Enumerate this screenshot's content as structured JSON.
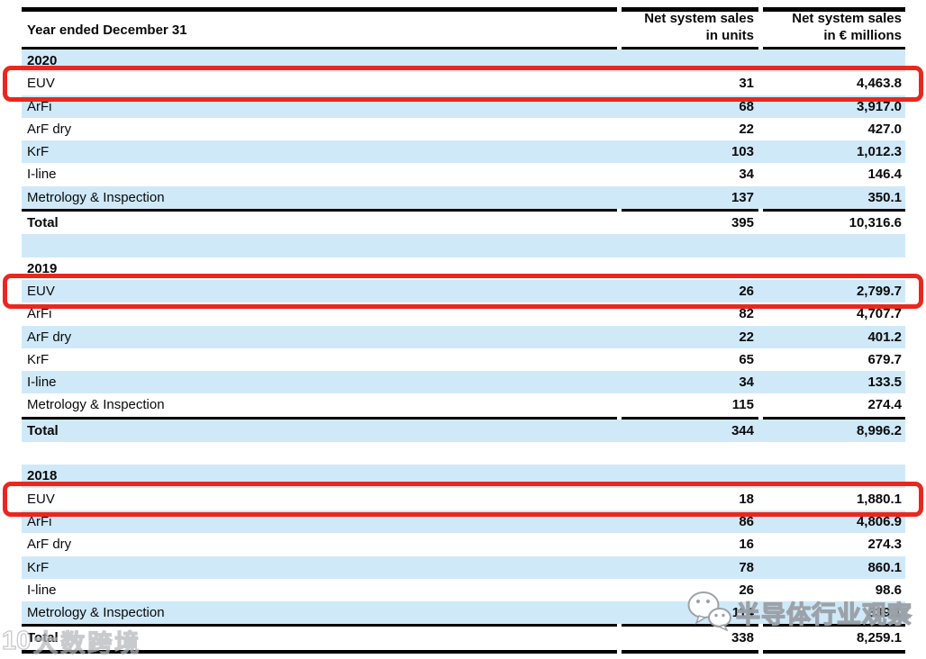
{
  "colors": {
    "row_blue": "#cfe9f9",
    "highlight_red": "#e8281e",
    "rule_black": "#000000",
    "watermark_gray": "#9aa0a6"
  },
  "table": {
    "header": {
      "year_col": "Year ended December 31",
      "units_col": "Net system sales\nin units",
      "eur_col": "Net system sales\nin € millions"
    },
    "sections": [
      {
        "year": "2020",
        "rows": [
          {
            "label": "EUV",
            "units": "31",
            "eur": "4,463.8"
          },
          {
            "label": "ArFi",
            "units": "68",
            "eur": "3,917.0"
          },
          {
            "label": "ArF dry",
            "units": "22",
            "eur": "427.0"
          },
          {
            "label": "KrF",
            "units": "103",
            "eur": "1,012.3"
          },
          {
            "label": "I-line",
            "units": "34",
            "eur": "146.4"
          },
          {
            "label": "Metrology & Inspection",
            "units": "137",
            "eur": "350.1"
          }
        ],
        "total": {
          "label": "Total",
          "units": "395",
          "eur": "10,316.6"
        }
      },
      {
        "year": "2019",
        "rows": [
          {
            "label": "EUV",
            "units": "26",
            "eur": "2,799.7"
          },
          {
            "label": "ArFi",
            "units": "82",
            "eur": "4,707.7"
          },
          {
            "label": "ArF dry",
            "units": "22",
            "eur": "401.2"
          },
          {
            "label": "KrF",
            "units": "65",
            "eur": "679.7"
          },
          {
            "label": "I-line",
            "units": "34",
            "eur": "133.5"
          },
          {
            "label": "Metrology & Inspection",
            "units": "115",
            "eur": "274.4"
          }
        ],
        "total": {
          "label": "Total",
          "units": "344",
          "eur": "8,996.2"
        }
      },
      {
        "year": "2018",
        "rows": [
          {
            "label": "EUV",
            "units": "18",
            "eur": "1,880.1"
          },
          {
            "label": "ArFi",
            "units": "86",
            "eur": "4,806.9"
          },
          {
            "label": "ArF dry",
            "units": "16",
            "eur": "274.3"
          },
          {
            "label": "KrF",
            "units": "78",
            "eur": "860.1"
          },
          {
            "label": "I-line",
            "units": "26",
            "eur": "98.6"
          },
          {
            "label": "Metrology & Inspection",
            "units": "114",
            "eur": "339.1"
          }
        ],
        "total": {
          "label": "Total",
          "units": "338",
          "eur": "8,259.1"
        }
      }
    ],
    "highlighted_rows": [
      "2020 EUV",
      "2019 EUV",
      "2018 EUV"
    ]
  },
  "watermarks": {
    "right": {
      "text": "半导体行业观察",
      "icon": "wechat-icon"
    },
    "left": {
      "text": "大数跨境",
      "logo_text": "10"
    }
  }
}
